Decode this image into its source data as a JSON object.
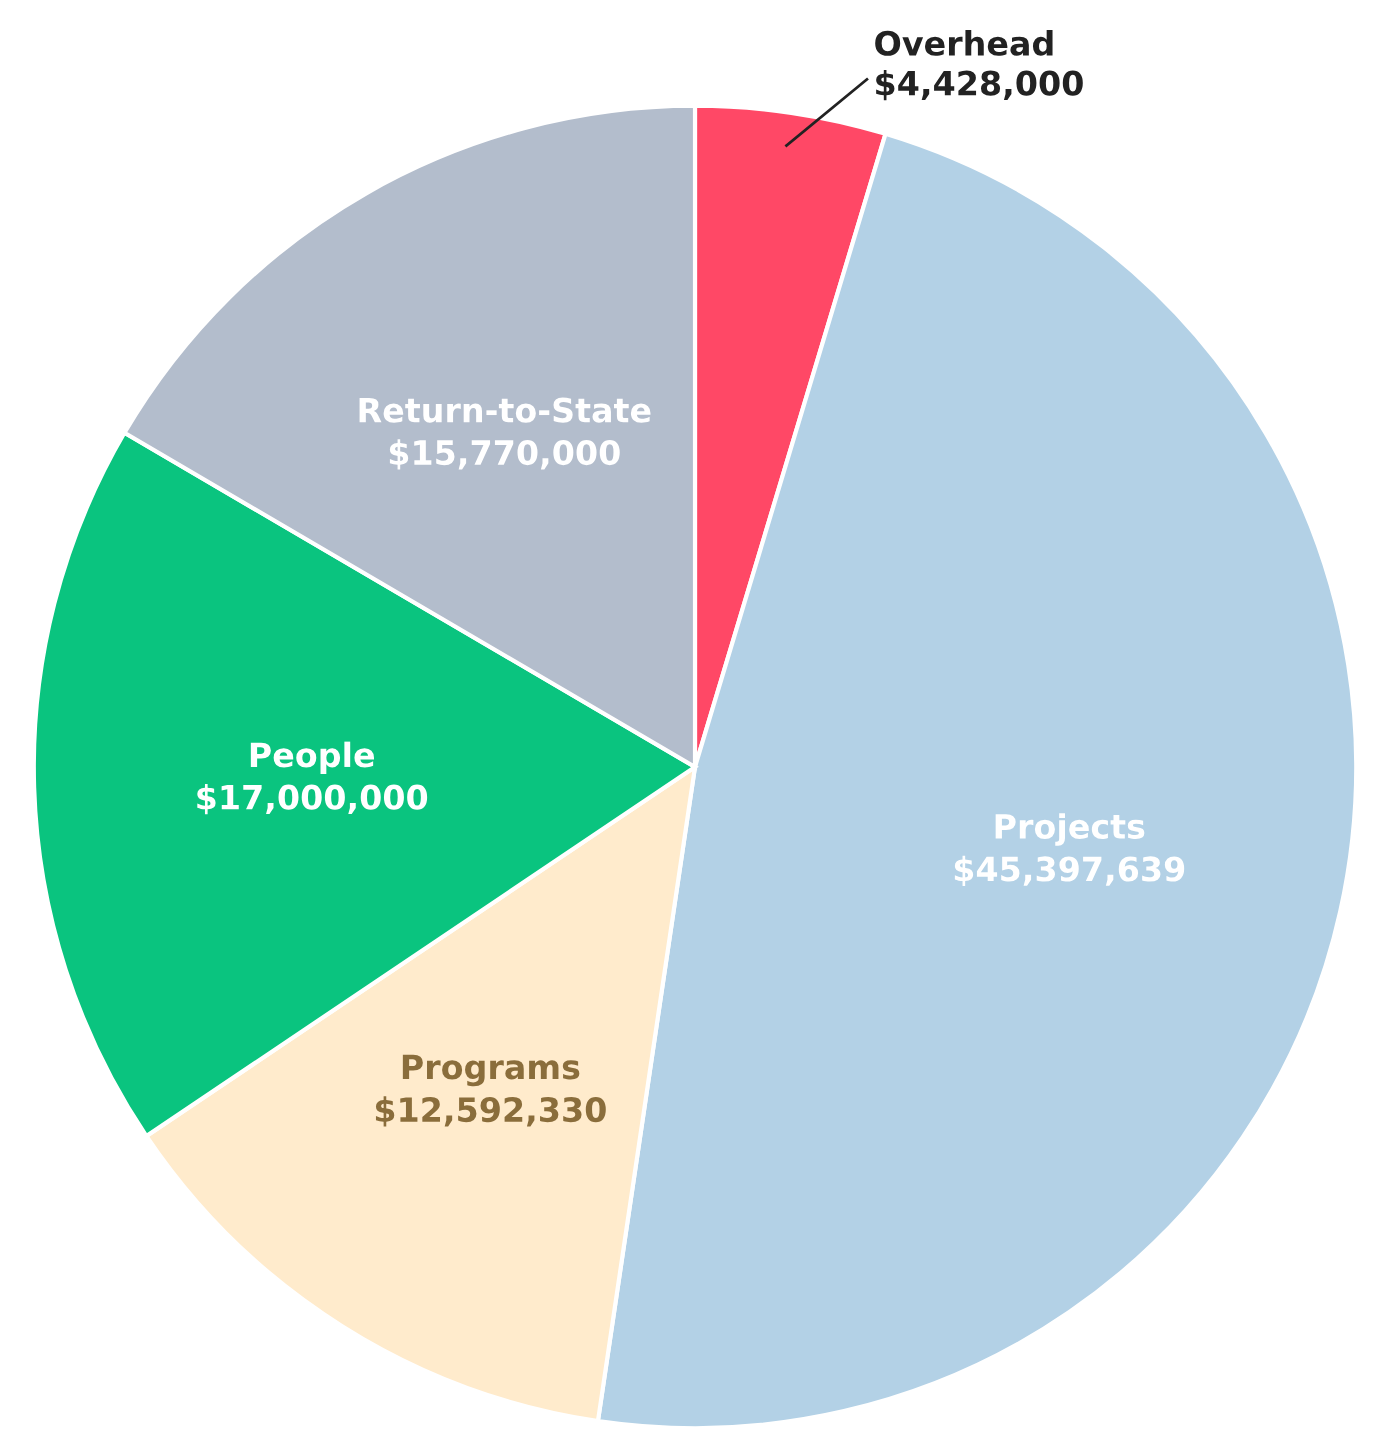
{
  "chart_data": {
    "type": "pie",
    "categories": [
      "Overhead",
      "Projects",
      "Programs",
      "People",
      "Return-to-State"
    ],
    "values": [
      4428000,
      45397639,
      12592330,
      17000000,
      15770000
    ],
    "value_labels": [
      "$4,428,000",
      "$45,397,639",
      "$12,592,330",
      "$17,000,000",
      "$15,770,000"
    ],
    "colors": [
      "#ff4866",
      "#b3d1e6",
      "#ffebcc",
      "#0ac47f",
      "#b3bdcc"
    ]
  }
}
